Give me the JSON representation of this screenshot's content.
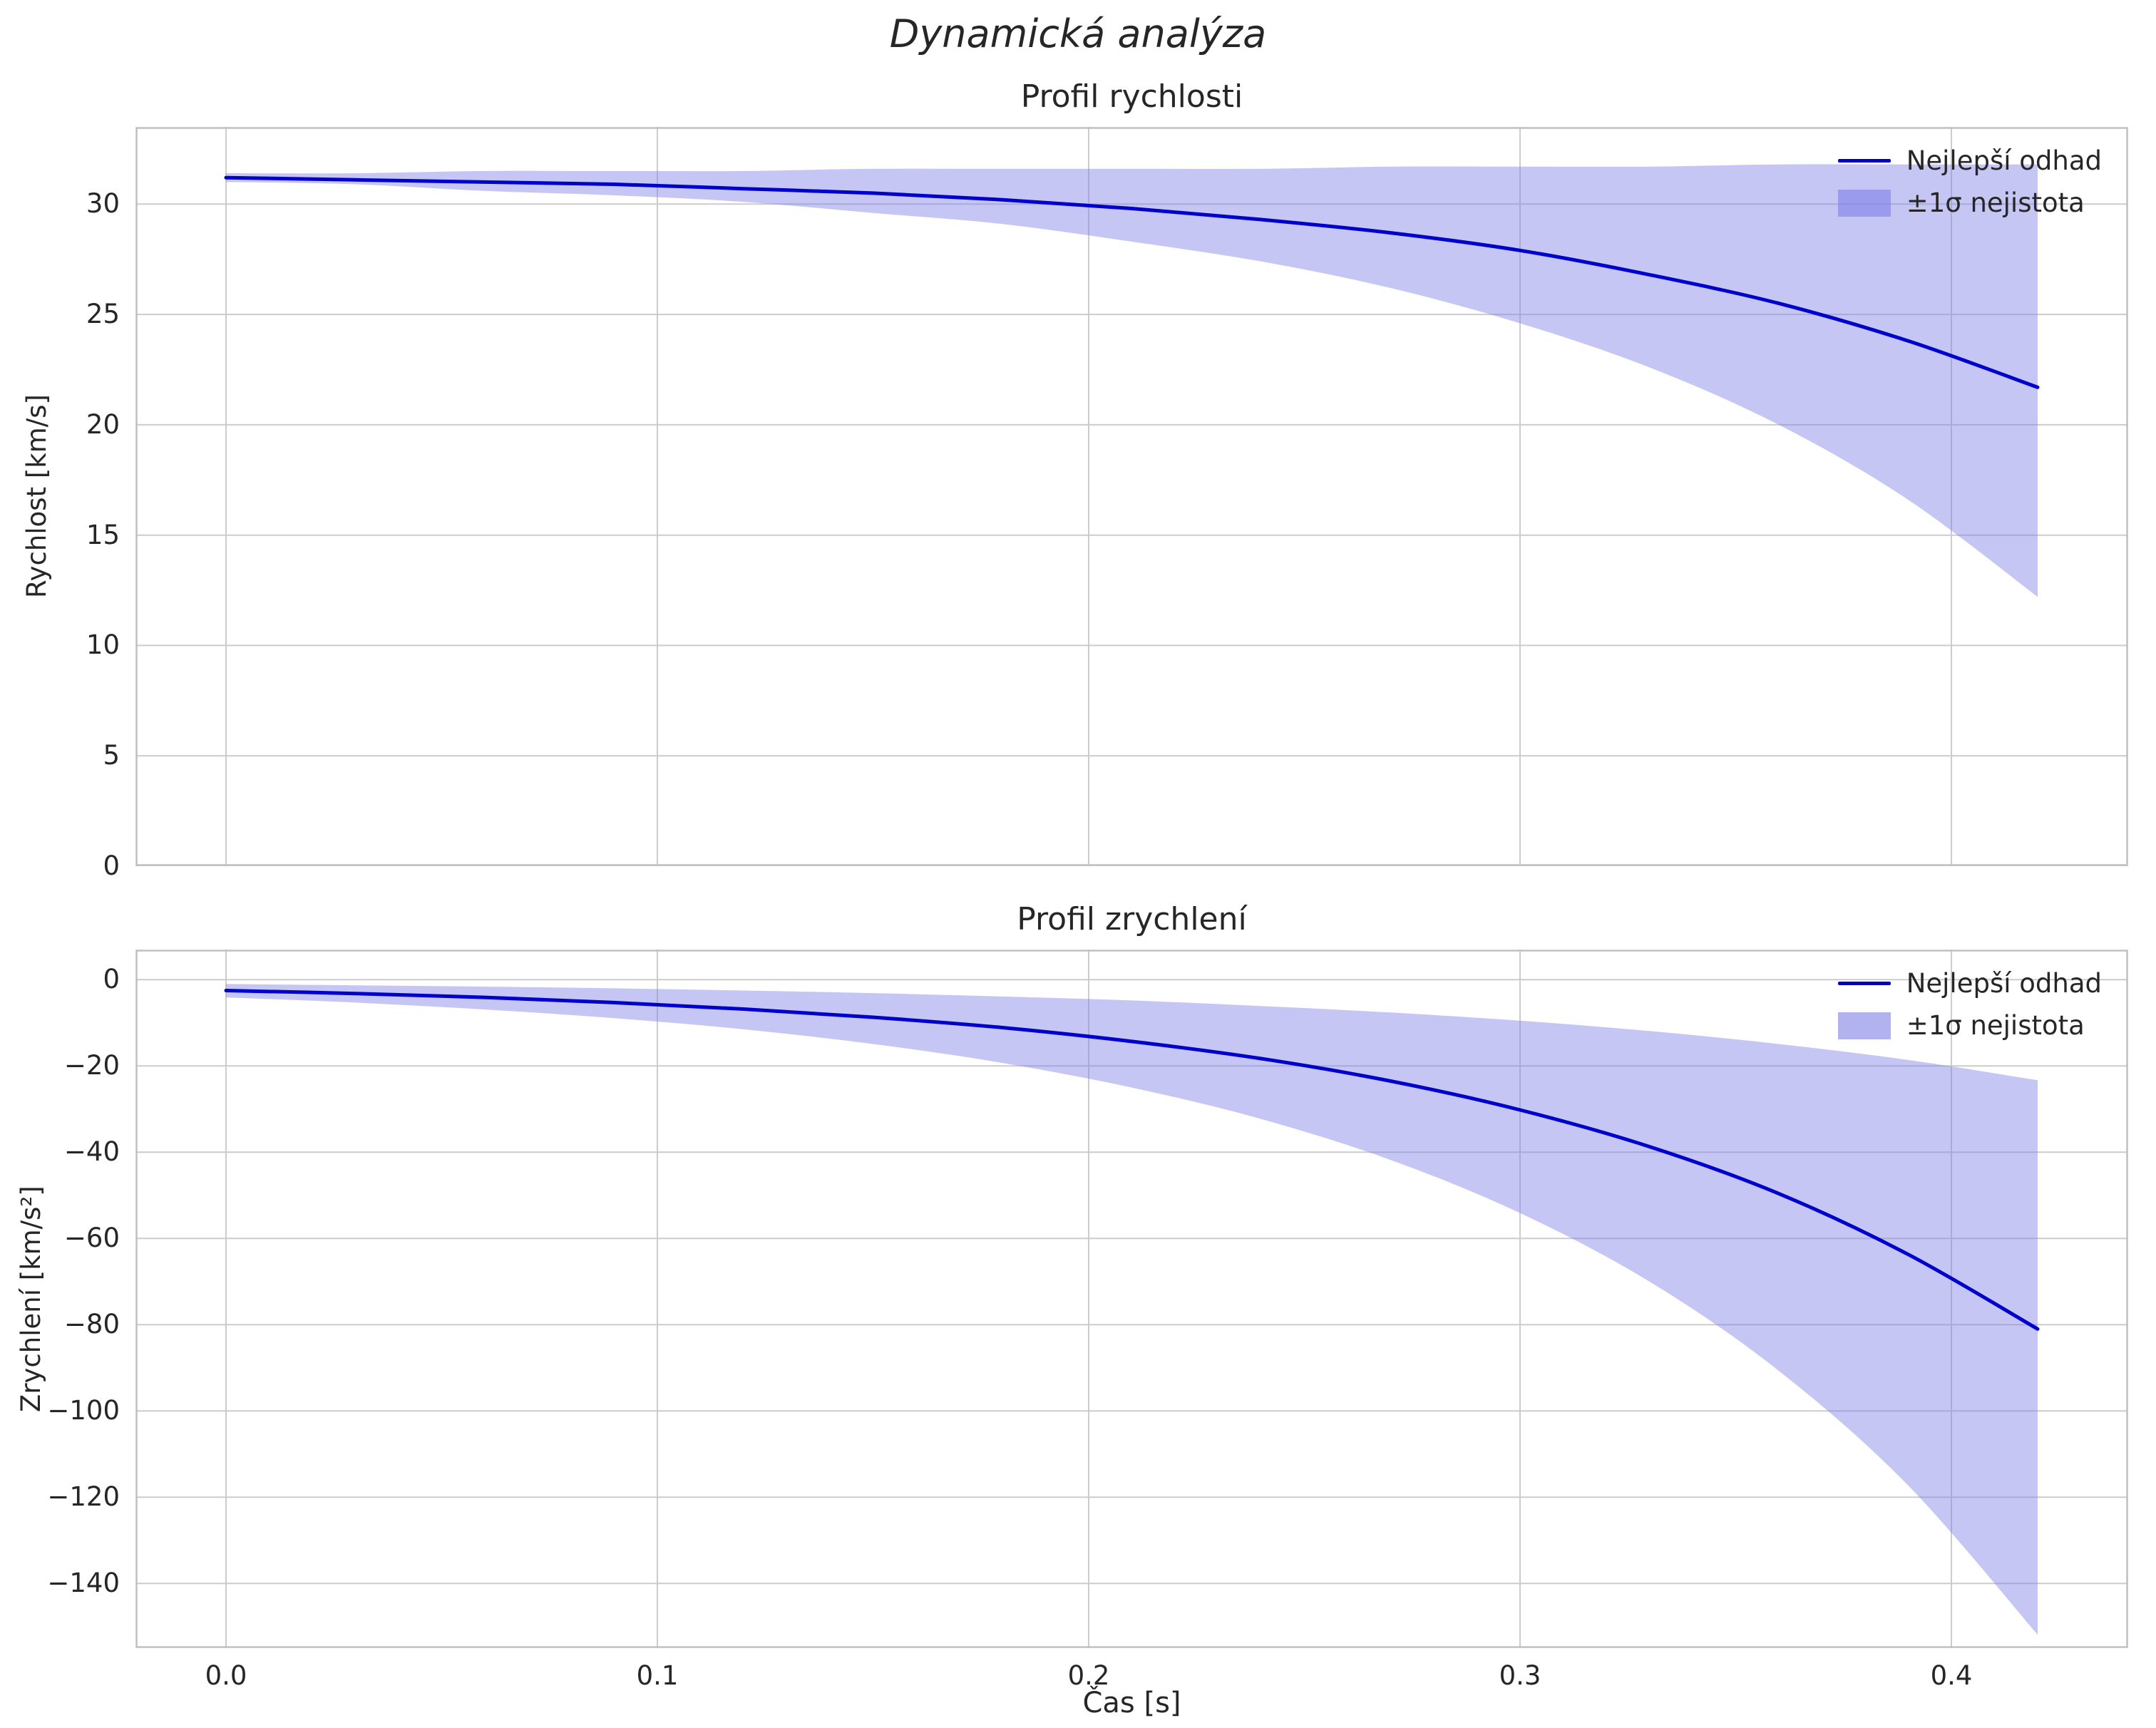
{
  "figure": {
    "title": "Dynamická analýza",
    "xlabel": "Čas [s]",
    "legend": {
      "line_label": "Nejlepší odhad",
      "band_label": "±1σ nejistota"
    },
    "colors": {
      "line": "#0000cd",
      "band": "#8080e8",
      "band_opacity": 0.45,
      "grid": "#cccccc",
      "spine": "#c0c0c0",
      "text": "#262626",
      "background": "#ffffff"
    }
  },
  "chart_data": [
    {
      "type": "line",
      "title": "Profil rychlosti",
      "xlabel": "",
      "ylabel": "Rychlost [km/s]",
      "grid": true,
      "legend_position": "upper right",
      "legend": [
        "Nejlepší odhad",
        "±1σ nejistota"
      ],
      "x": [
        0.0,
        0.03,
        0.06,
        0.09,
        0.12,
        0.15,
        0.18,
        0.21,
        0.24,
        0.27,
        0.3,
        0.33,
        0.36,
        0.39,
        0.42
      ],
      "series": [
        {
          "name": "Nejlepší odhad",
          "values": [
            31.2,
            31.1,
            31.0,
            30.9,
            30.7,
            30.5,
            30.2,
            29.8,
            29.3,
            28.7,
            27.9,
            26.8,
            25.5,
            23.8,
            21.7
          ]
        }
      ],
      "band": {
        "name": "±1σ nejistota",
        "upper": [
          31.4,
          31.4,
          31.5,
          31.5,
          31.5,
          31.6,
          31.6,
          31.6,
          31.6,
          31.7,
          31.7,
          31.7,
          31.8,
          31.8,
          31.8
        ],
        "lower": [
          31.0,
          30.9,
          30.6,
          30.4,
          30.1,
          29.6,
          29.1,
          28.3,
          27.4,
          26.2,
          24.6,
          22.6,
          20.0,
          16.6,
          12.2
        ]
      },
      "xlim": [
        -0.021,
        0.441
      ],
      "ylim": [
        0,
        33.5
      ],
      "xticks": [
        0.0,
        0.1,
        0.2,
        0.3,
        0.4
      ],
      "xtick_labels": [],
      "yticks": [
        0,
        5,
        10,
        15,
        20,
        25,
        30
      ],
      "ytick_labels": [
        "0",
        "5",
        "10",
        "15",
        "20",
        "25",
        "30"
      ]
    },
    {
      "type": "line",
      "title": "Profil zrychlení",
      "xlabel": "Čas [s]",
      "ylabel": "Zrychlení [km/s²]",
      "grid": true,
      "legend_position": "upper right",
      "legend": [
        "Nejlepší odhad",
        "±1σ nejistota"
      ],
      "x": [
        0.0,
        0.03,
        0.06,
        0.09,
        0.12,
        0.15,
        0.18,
        0.21,
        0.24,
        0.27,
        0.3,
        0.33,
        0.36,
        0.39,
        0.42
      ],
      "series": [
        {
          "name": "Nejlepší odhad",
          "values": [
            -2.5,
            -3.2,
            -4.1,
            -5.3,
            -6.8,
            -8.7,
            -11.1,
            -14.3,
            -18.3,
            -23.5,
            -30.2,
            -38.7,
            -49.6,
            -63.7,
            -81.0
          ]
        }
      ],
      "band": {
        "name": "±1σ nejistota",
        "upper": [
          -1.0,
          -1.3,
          -1.6,
          -2.0,
          -2.5,
          -3.1,
          -3.9,
          -4.8,
          -6.1,
          -7.6,
          -9.5,
          -11.9,
          -14.9,
          -18.6,
          -23.3
        ],
        "lower": [
          -4.1,
          -5.3,
          -6.9,
          -8.9,
          -11.5,
          -14.9,
          -19.3,
          -25.0,
          -32.3,
          -41.8,
          -54.1,
          -70.0,
          -90.7,
          -117.3,
          -151.9
        ]
      },
      "xlim": [
        -0.021,
        0.441
      ],
      "ylim": [
        -155,
        7
      ],
      "xticks": [
        0.0,
        0.1,
        0.2,
        0.3,
        0.4
      ],
      "xtick_labels": [
        "0.0",
        "0.1",
        "0.2",
        "0.3",
        "0.4"
      ],
      "yticks": [
        0,
        -20,
        -40,
        -60,
        -80,
        -100,
        -120,
        -140
      ],
      "ytick_labels": [
        "0",
        "−20",
        "−40",
        "−60",
        "−80",
        "−100",
        "−120",
        "−140"
      ]
    }
  ]
}
